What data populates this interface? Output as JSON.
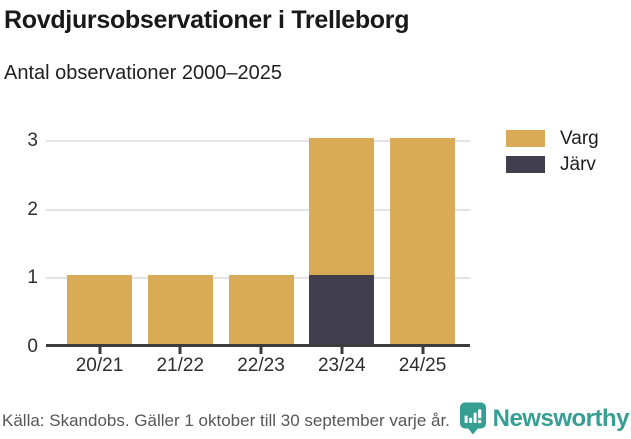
{
  "header": {
    "title": "Rovdjursobservationer i Trelleborg",
    "subtitle": "Antal observationer 2000–2025"
  },
  "chart_data": {
    "type": "bar",
    "stacked": true,
    "title": "Rovdjursobservationer i Trelleborg",
    "subtitle": "Antal observationer 2000–2025",
    "xlabel": "",
    "ylabel": "",
    "categories": [
      "20/21",
      "21/22",
      "22/23",
      "23/24",
      "24/25"
    ],
    "series": [
      {
        "name": "Varg",
        "color": "#d9ab57",
        "values": [
          1,
          1,
          1,
          2,
          3
        ]
      },
      {
        "name": "Järv",
        "color": "#413f4d",
        "values": [
          0,
          0,
          0,
          1,
          0
        ]
      }
    ],
    "stack_bottom_to_top": [
      "Järv",
      "Varg"
    ],
    "totals_per_category": [
      1,
      1,
      1,
      3,
      3
    ],
    "yticks": [
      0,
      1,
      2,
      3
    ],
    "ylim": [
      0,
      3
    ],
    "grid": true,
    "legend_position": "top-right"
  },
  "footer": {
    "source": "Källa: Skandobs. Gäller 1 oktober till 30 september varje år.",
    "brand": "Newsworthy",
    "logo_icon": "newsworthy-speech-bubble-bar-chart"
  },
  "colors": {
    "varg": "#d9ab57",
    "jarv": "#413f4d",
    "gridline": "#e4e4e4",
    "axis": "#3d3c3c",
    "text_dark": "#191919",
    "text_axis": "#2e2e2e",
    "source_text": "#575757",
    "brand_teal": "#369e92",
    "background": "#ffffff"
  }
}
